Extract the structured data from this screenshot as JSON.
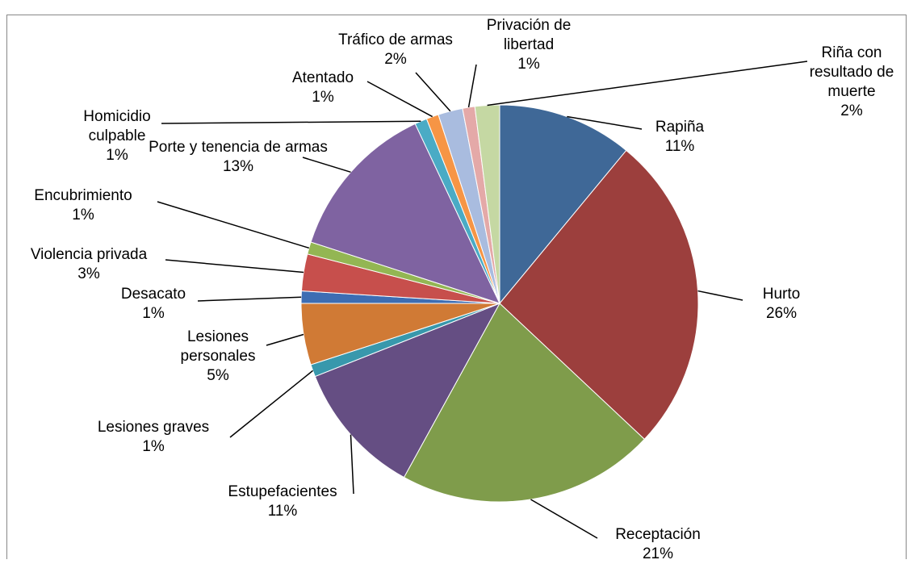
{
  "chart_data": {
    "type": "pie",
    "categories": [
      "Rapiña",
      "Hurto",
      "Receptación",
      "Estupefacientes",
      "Lesiones graves",
      "Lesiones personales",
      "Desacato",
      "Violencia privada",
      "Encubrimiento",
      "Porte y tenencia de armas",
      "Homicidio culpable",
      "Atentado",
      "Tráfico de armas",
      "Privación de libertad",
      "Riña con resultado de muerte"
    ],
    "values": [
      11,
      26,
      21,
      11,
      1,
      5,
      1,
      3,
      1,
      13,
      1,
      1,
      2,
      1,
      2
    ],
    "value_labels": [
      "11%",
      "26%",
      "21%",
      "11%",
      "1%",
      "5%",
      "1%",
      "3%",
      "1%",
      "13%",
      "1%",
      "1%",
      "2%",
      "1%",
      "2%"
    ],
    "colors": [
      "#3F6897",
      "#9C3F3D",
      "#7F9C4B",
      "#654E83",
      "#3898AC",
      "#D07A35",
      "#3D6DB3",
      "#C74F4C",
      "#93B653",
      "#7F63A1",
      "#4AABC5",
      "#F69545",
      "#A9BCDF",
      "#E4A9A8",
      "#C5D8A3"
    ]
  }
}
